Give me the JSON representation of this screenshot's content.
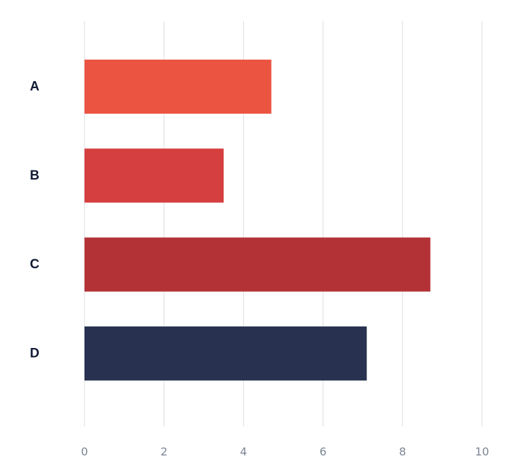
{
  "chart_data": {
    "type": "bar",
    "orientation": "horizontal",
    "categories": [
      "A",
      "B",
      "C",
      "D"
    ],
    "values": [
      4.7,
      3.5,
      8.7,
      7.1
    ],
    "colors": [
      "#ec5442",
      "#d63f3f",
      "#b33236",
      "#283250"
    ],
    "xlim": [
      0,
      10
    ],
    "xticks": [
      "0",
      "2",
      "4",
      "6",
      "8",
      "10"
    ],
    "title": "",
    "xlabel": "",
    "ylabel": "",
    "grid": "vertical",
    "legend": "none"
  }
}
